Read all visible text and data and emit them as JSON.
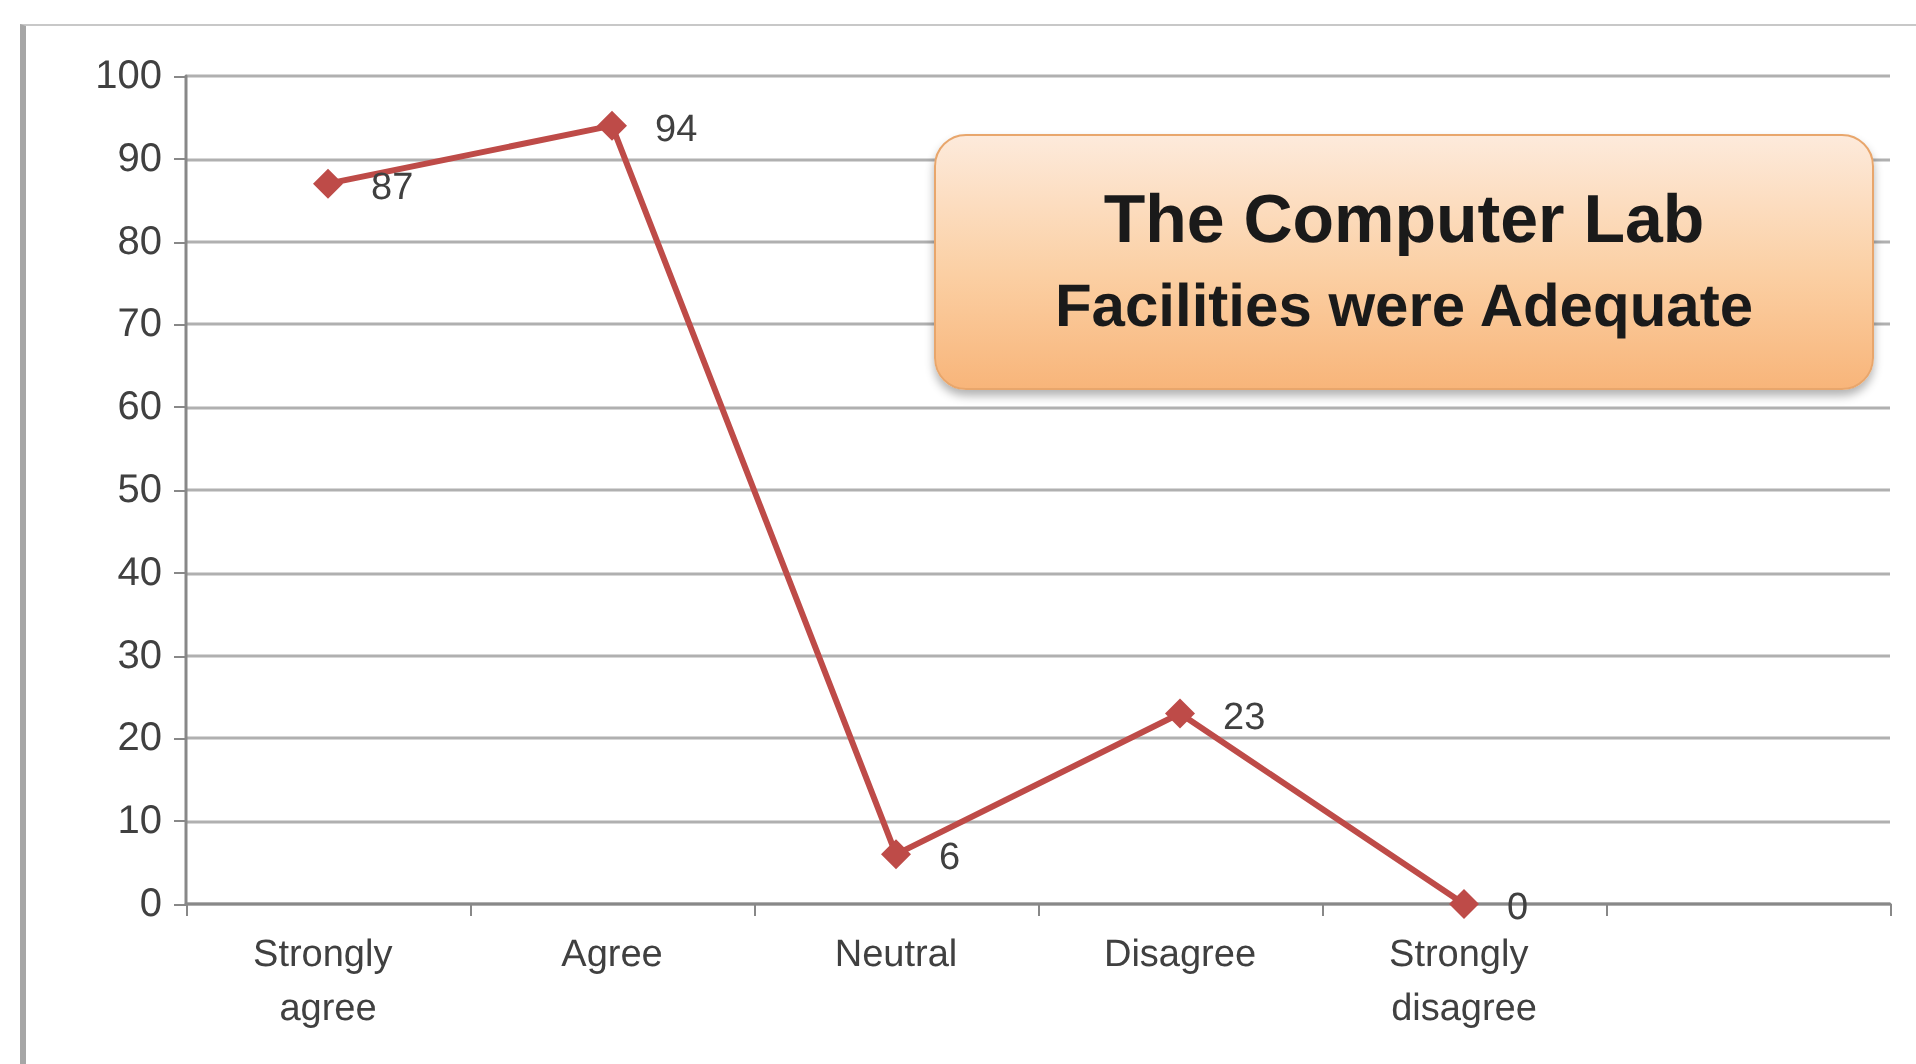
{
  "chart_data": {
    "type": "line",
    "title": "The Computer Lab\nFacilities were Adequate",
    "categories": [
      "Strongly agree",
      "Agree",
      "Neutral",
      "Disagree",
      "Strongly disagree",
      null
    ],
    "series": [
      {
        "color": "#be4b48",
        "values": [
          87,
          94,
          6,
          23,
          0,
          null
        ]
      }
    ],
    "ylim": [
      0,
      100
    ],
    "yticks": [
      0,
      10,
      20,
      30,
      40,
      50,
      60,
      70,
      80,
      90,
      100
    ],
    "grid": "y",
    "marker": "diamond",
    "line_style": "solid",
    "data_labels": true
  }
}
